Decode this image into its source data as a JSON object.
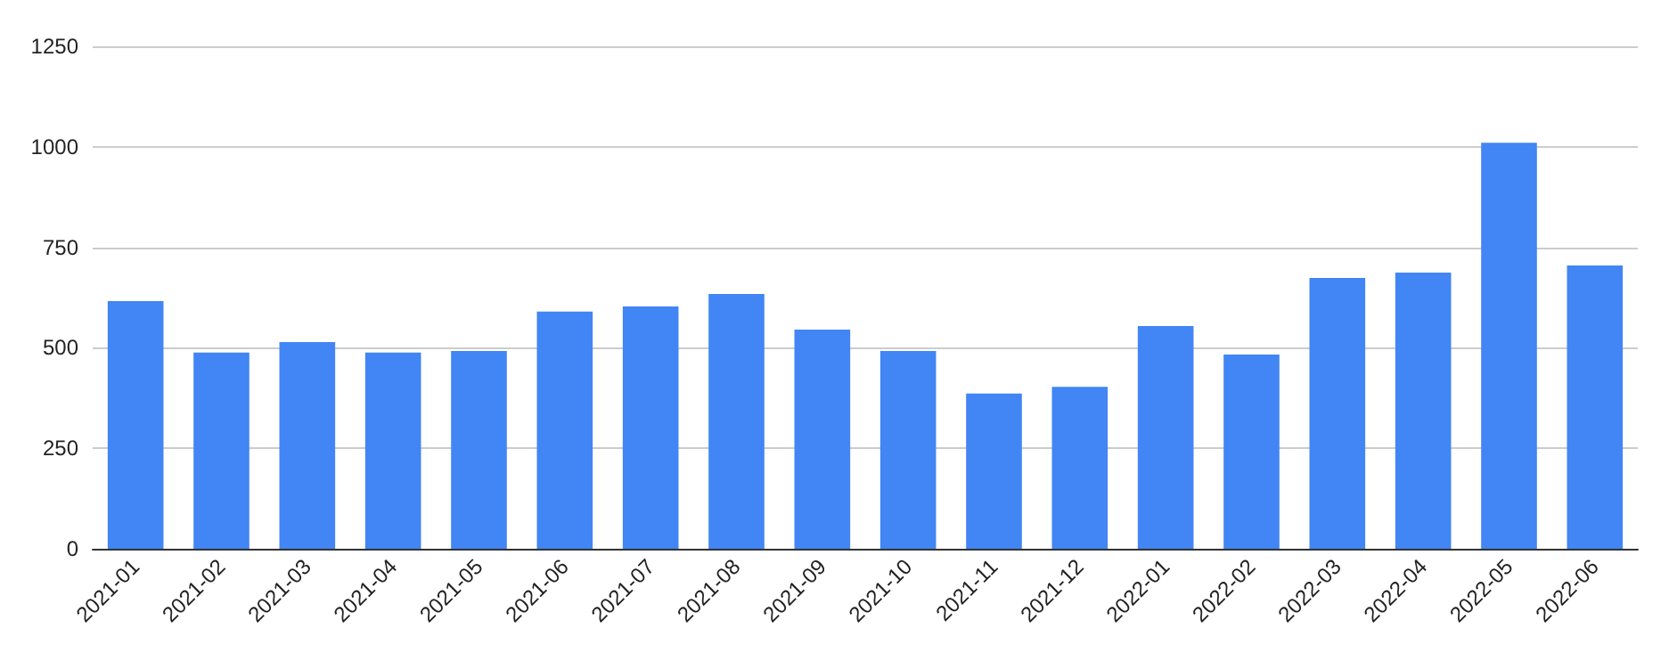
{
  "chart_data": {
    "type": "bar",
    "categories": [
      "2021-01",
      "2021-02",
      "2021-03",
      "2021-04",
      "2021-05",
      "2021-06",
      "2021-07",
      "2021-08",
      "2021-09",
      "2021-10",
      "2021-11",
      "2021-12",
      "2022-01",
      "2022-02",
      "2022-03",
      "2022-04",
      "2022-05",
      "2022-06"
    ],
    "values": [
      616,
      488,
      514,
      488,
      492,
      590,
      603,
      634,
      545,
      492,
      386,
      403,
      554,
      483,
      674,
      687,
      1010,
      705
    ],
    "color": "#4285f4",
    "ylim": [
      0,
      1250
    ],
    "yticks": [
      0,
      250,
      500,
      750,
      1000,
      1250
    ],
    "grid": "y"
  }
}
